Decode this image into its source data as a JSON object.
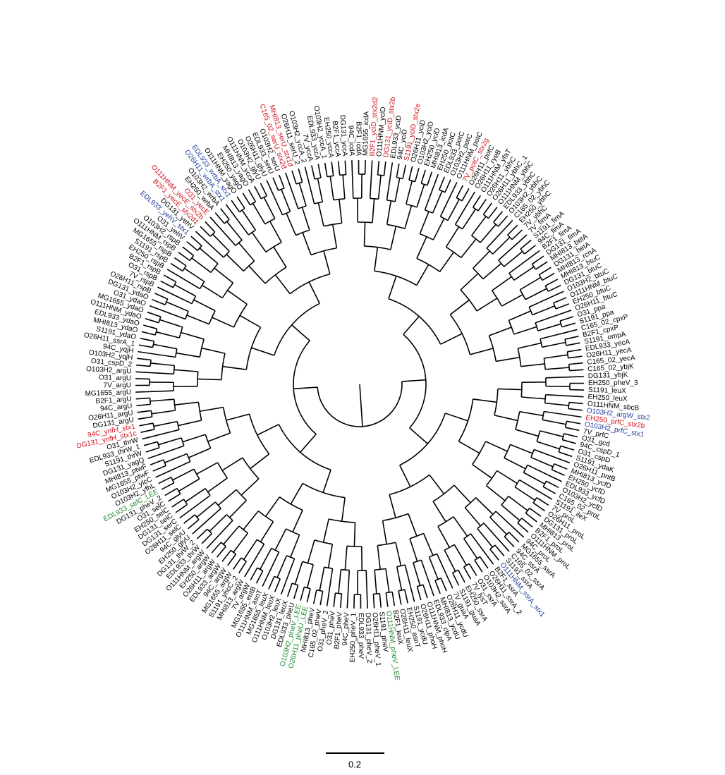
{
  "palette": {
    "k": "#000000",
    "r": "#d0111b",
    "b": "#1f3f9a",
    "g": "#1e8a2e"
  },
  "scale": "0.2",
  "leaves": [
    {
      "label": "94C_icdA",
      "c": "k"
    },
    {
      "label": "B2F1_icdA",
      "c": "k"
    },
    {
      "label": "MG1655_icdA",
      "c": "k"
    },
    {
      "label": "B2F1_yciD_stx2d2",
      "c": "r"
    },
    {
      "label": "O111HNM_yciD",
      "c": "k"
    },
    {
      "label": "DG131_yciD_stx2b",
      "c": "r"
    },
    {
      "label": "EDL933_yciD",
      "c": "k"
    },
    {
      "label": "94C_yciD",
      "c": "k"
    },
    {
      "label": "S1191_yciD_stx2e",
      "c": "r"
    },
    {
      "label": "O26H11_yciD",
      "c": "k"
    },
    {
      "label": "O103H2_yciD",
      "c": "k"
    },
    {
      "label": "EH250_yciD",
      "c": "k"
    },
    {
      "label": "MHI813_icdA",
      "c": "k"
    },
    {
      "label": "EH250_potC",
      "c": "k"
    },
    {
      "label": "EDL933_potC",
      "c": "k"
    },
    {
      "label": "O103H2_potC",
      "c": "k"
    },
    {
      "label": "O111HNM_potC",
      "c": "k"
    },
    {
      "label": "7V_potC_stx2g",
      "c": "r"
    },
    {
      "label": "O26H11_potC",
      "c": "k"
    },
    {
      "label": "O26H11_ryeB",
      "c": "k"
    },
    {
      "label": "O111HNM_yfaT",
      "c": "k"
    },
    {
      "label": "O26H11_ybhC",
      "c": "k"
    },
    {
      "label": "O26H11_ybhC_1",
      "c": "k"
    },
    {
      "label": "O111HNM_ybhC",
      "c": "k"
    },
    {
      "label": "EDL933_ybhC",
      "c": "k"
    },
    {
      "label": "O103H2_ybhC",
      "c": "k"
    },
    {
      "label": "C165_02_ybhC",
      "c": "k"
    },
    {
      "label": "EH250_ybhC",
      "c": "k"
    },
    {
      "label": "7V_ybhC",
      "c": "k"
    },
    {
      "label": "7V_fimA",
      "c": "k"
    },
    {
      "label": "S1191_fimA",
      "c": "k"
    },
    {
      "label": "94C_fimA",
      "c": "k"
    },
    {
      "label": "B2F1_fimA",
      "c": "k"
    },
    {
      "label": "DG131_fimA",
      "c": "k"
    },
    {
      "label": "MHI813_betA",
      "c": "k"
    },
    {
      "label": "DG131_betA",
      "c": "k"
    },
    {
      "label": "MHI813_rcnA",
      "c": "k"
    },
    {
      "label": "MHI813_btuC",
      "c": "k"
    },
    {
      "label": "DG131_btuC",
      "c": "k"
    },
    {
      "label": "O103H2_btuC",
      "c": "k"
    },
    {
      "label": "O111HNM_btuC",
      "c": "k"
    },
    {
      "label": "EH250_btuC",
      "c": "k"
    },
    {
      "label": "O26H11_btuC",
      "c": "k"
    },
    {
      "label": "O31_ppa",
      "c": "k"
    },
    {
      "label": "S1191_ppa",
      "c": "k"
    },
    {
      "label": "C165_02_cpxP",
      "c": "k"
    },
    {
      "label": "B2F1_cpxP",
      "c": "k"
    },
    {
      "label": "S1191_ompA",
      "c": "k"
    },
    {
      "label": "EDL933_yecA",
      "c": "k"
    },
    {
      "label": "O26H11_yecA",
      "c": "k"
    },
    {
      "label": "C165_02_yecA",
      "c": "k"
    },
    {
      "label": "C165_02_ybjK",
      "c": "k"
    },
    {
      "label": "DG131_ybjK",
      "c": "k"
    },
    {
      "label": "EH250_pheV_3",
      "c": "k"
    },
    {
      "label": "S1191_leuX",
      "c": "k"
    },
    {
      "label": "EH250_leuX",
      "c": "k"
    },
    {
      "label": "O111HNM_sbcB",
      "c": "k"
    },
    {
      "label": "O103H2_argW_stx2",
      "c": "b"
    },
    {
      "label": "EH250_prfC_stx2b",
      "c": "r"
    },
    {
      "label": "O103H2_prfC_stx1",
      "c": "b"
    },
    {
      "label": "7V_prfC",
      "c": "k"
    },
    {
      "label": "O31_gcd",
      "c": "k"
    },
    {
      "label": "94C_cspD_1",
      "c": "k"
    },
    {
      "label": "O31_cspD",
      "c": "k"
    },
    {
      "label": "S1191_ydaK",
      "c": "k"
    },
    {
      "label": "O26H11_pntB",
      "c": "k"
    },
    {
      "label": "MHI813_ycfD",
      "c": "k"
    },
    {
      "label": "EH250_ycfD",
      "c": "k"
    },
    {
      "label": "EDL933_ycfD",
      "c": "k"
    },
    {
      "label": "O103H2_ycfD",
      "c": "k"
    },
    {
      "label": "C165_02_proL",
      "c": "k"
    },
    {
      "label": "S1191_ileX",
      "c": "k"
    },
    {
      "label": "7V_proL",
      "c": "k"
    },
    {
      "label": "O26H11_proL",
      "c": "k"
    },
    {
      "label": "DG131_proL",
      "c": "k"
    },
    {
      "label": "MHI813_proL",
      "c": "k"
    },
    {
      "label": "B2F1_proL",
      "c": "k"
    },
    {
      "label": "O111HNM_proL",
      "c": "k"
    },
    {
      "label": "94C_proL",
      "c": "k"
    },
    {
      "label": "MG1655_ssrA",
      "c": "k"
    },
    {
      "label": "94C_ssrA",
      "c": "k"
    },
    {
      "label": "C165_02_ssrA",
      "c": "k"
    },
    {
      "label": "S1191_ssrA",
      "c": "k"
    },
    {
      "label": "O111HNM_ssrA_stx1",
      "c": "b"
    },
    {
      "label": "B2F1_ssrA",
      "c": "k"
    },
    {
      "label": "O26H11_ssrA_2",
      "c": "k"
    },
    {
      "label": "O103H2_ssrA",
      "c": "k"
    },
    {
      "label": "O31_ssrA",
      "c": "k"
    },
    {
      "label": "7V_lysT",
      "c": "k"
    },
    {
      "label": "EH250_ssrA",
      "c": "k"
    },
    {
      "label": "S1191_guaA",
      "c": "k"
    },
    {
      "label": "7V_guaA",
      "c": "k"
    },
    {
      "label": "O26H11_ycdU",
      "c": "k"
    },
    {
      "label": "MHI813_ycdU",
      "c": "k"
    },
    {
      "label": "EDL933_clpA",
      "c": "k"
    },
    {
      "label": "O111HNM_phoH",
      "c": "k"
    },
    {
      "label": "O26H11_phoH",
      "c": "k"
    },
    {
      "label": "S1191_ycdU",
      "c": "k"
    },
    {
      "label": "EH250_asnT",
      "c": "k"
    },
    {
      "label": "O26H11_leuX",
      "c": "k"
    },
    {
      "label": "B2F1_leuX",
      "c": "k"
    },
    {
      "label": "O111HNM_pheV_LEE",
      "c": "g"
    },
    {
      "label": "S1191_pheV",
      "c": "k"
    },
    {
      "label": "O26H11_pheV_1",
      "c": "k"
    },
    {
      "label": "DG131_pheV_2",
      "c": "k"
    },
    {
      "label": "EDL933_pheV",
      "c": "k"
    },
    {
      "label": "EH250_pheV_1",
      "c": "k"
    },
    {
      "label": "94C_pheV",
      "c": "k"
    },
    {
      "label": "B2F1_pheV",
      "c": "k"
    },
    {
      "label": "O31_pheV",
      "c": "k"
    },
    {
      "label": "O31_pheV_2",
      "c": "k"
    },
    {
      "label": "C165_02_pheV",
      "c": "k"
    },
    {
      "label": "MHI813_pheV",
      "c": "k"
    },
    {
      "label": "O26H11_pheU_LEE",
      "c": "g"
    },
    {
      "label": "O103H2_pheV_LEE",
      "c": "g"
    },
    {
      "label": "EDL933_pheU",
      "c": "k"
    },
    {
      "label": "DG131_leuX",
      "c": "k"
    },
    {
      "label": "O103H2_leuX",
      "c": "k"
    },
    {
      "label": "O111HNM_leuX",
      "c": "k"
    },
    {
      "label": "MG1655_leuX",
      "c": "k"
    },
    {
      "label": "O111HNM_asnT",
      "c": "k"
    },
    {
      "label": "MG1655_eutB",
      "c": "k"
    },
    {
      "label": "7V_argW",
      "c": "k"
    },
    {
      "label": "MHI813_argW",
      "c": "k"
    },
    {
      "label": "S1191_yhcC_2",
      "c": "k"
    },
    {
      "label": "MG1655_argW",
      "c": "k"
    },
    {
      "label": "94C_argW",
      "c": "k"
    },
    {
      "label": "EDL933_argW",
      "c": "k"
    },
    {
      "label": "O26H11_argW",
      "c": "k"
    },
    {
      "label": "EH250_argW",
      "c": "k"
    },
    {
      "label": "O111HNM_argW",
      "c": "k"
    },
    {
      "label": "EDL933_thrW",
      "c": "k"
    },
    {
      "label": "DG131_thrW_2",
      "c": "k"
    },
    {
      "label": "EH250_glyU",
      "c": "k"
    },
    {
      "label": "94C_glyU",
      "c": "k"
    },
    {
      "label": "O26H11_selC",
      "c": "k"
    },
    {
      "label": "DG131_serC",
      "c": "k"
    },
    {
      "label": "DG131_selC",
      "c": "k"
    },
    {
      "label": "EH250_selC",
      "c": "k"
    },
    {
      "label": "O31_selC",
      "c": "k"
    },
    {
      "label": "DG131_pheV_2",
      "c": "k"
    },
    {
      "label": "EDL933_selC_LEE",
      "c": "g"
    },
    {
      "label": "O103H2_yfhL",
      "c": "k"
    },
    {
      "label": "O103H2_ylcC",
      "c": "k"
    },
    {
      "label": "MG1655_ptwF",
      "c": "k"
    },
    {
      "label": "MHI813_ptwF",
      "c": "k"
    },
    {
      "label": "DG131_yagQ",
      "c": "k"
    },
    {
      "label": "S1191_thrW",
      "c": "k"
    },
    {
      "label": "EDL933_thrW_1",
      "c": "k"
    },
    {
      "label": "O31_thrW",
      "c": "k"
    },
    {
      "label": "DG131_ynfH_stx1c",
      "c": "r"
    },
    {
      "label": "94C_ynfH_stx1",
      "c": "r"
    },
    {
      "label": "DG131_argU",
      "c": "k"
    },
    {
      "label": "O26H11_argU",
      "c": "k"
    },
    {
      "label": "94C_argU",
      "c": "k"
    },
    {
      "label": "B2F1_argU",
      "c": "k"
    },
    {
      "label": "MG1655_argU",
      "c": "k"
    },
    {
      "label": "7V_argU",
      "c": "k"
    },
    {
      "label": "O31_argU",
      "c": "k"
    },
    {
      "label": "O103H2_argU",
      "c": "k"
    },
    {
      "label": "O31_cspD_2",
      "c": "k"
    },
    {
      "label": "O103H2_yqjH",
      "c": "k"
    },
    {
      "label": "94C_yqjH",
      "c": "k"
    },
    {
      "label": "O26H11_ssrA_1",
      "c": "k"
    },
    {
      "label": "S1191_ydaO",
      "c": "k"
    },
    {
      "label": "MHI813_ydaO",
      "c": "k"
    },
    {
      "label": "EDL933_ydaO",
      "c": "k"
    },
    {
      "label": "O111HNM_ydaO",
      "c": "k"
    },
    {
      "label": "MG1655_ydaO",
      "c": "k"
    },
    {
      "label": "O31_ydaO",
      "c": "k"
    },
    {
      "label": "DG131_ydaO",
      "c": "k"
    },
    {
      "label": "O26H11_rspB",
      "c": "k"
    },
    {
      "label": "7V_rspB",
      "c": "k"
    },
    {
      "label": "O31_rspB",
      "c": "k"
    },
    {
      "label": "B2F1_rspB",
      "c": "k"
    },
    {
      "label": "EH250_rspB",
      "c": "k"
    },
    {
      "label": "S1191_rspB",
      "c": "k"
    },
    {
      "label": "MG1655_rspB",
      "c": "k"
    },
    {
      "label": "O111HNM_rspB",
      "c": "k"
    },
    {
      "label": "O103H2_rspB",
      "c": "k"
    },
    {
      "label": "O31_yehV",
      "c": "k"
    },
    {
      "label": "EDL933_yehV_stx1",
      "c": "b"
    },
    {
      "label": "DG131_yehV",
      "c": "k"
    },
    {
      "label": "B2F1_yecE_stx2d1",
      "c": "r"
    },
    {
      "label": "O111HNM_yecE_stx2b",
      "c": "r"
    },
    {
      "label": "O31_yecE",
      "c": "r"
    },
    {
      "label": "EH250_wrbA",
      "c": "k"
    },
    {
      "label": "O103H2_wrbA",
      "c": "k"
    },
    {
      "label": "O26H11_wrbA_stx1",
      "c": "b"
    },
    {
      "label": "EDL933_wrbA_stx1",
      "c": "b"
    },
    {
      "label": "O111HNM_yagO",
      "c": "k"
    },
    {
      "label": "EH250_yagO",
      "c": "k"
    },
    {
      "label": "MHI813_yagO",
      "c": "k"
    },
    {
      "label": "O111HNM_yccA",
      "c": "k"
    },
    {
      "label": "O103H2_glyU",
      "c": "k"
    },
    {
      "label": "O26H11_glyU",
      "c": "k"
    },
    {
      "label": "EDL933_serU",
      "c": "k"
    },
    {
      "label": "O103H2_serU",
      "c": "k"
    },
    {
      "label": "C165_02_serU_stx2d",
      "c": "r"
    },
    {
      "label": "MHI813_serU_stx1d",
      "c": "r"
    },
    {
      "label": "O26H11_serU_2",
      "c": "k"
    },
    {
      "label": "O103H2_yccA_2",
      "c": "k"
    },
    {
      "label": "7V_yccA",
      "c": "k"
    },
    {
      "label": "EDL933_yccA",
      "c": "k"
    },
    {
      "label": "O103H2_yccA_1",
      "c": "k"
    },
    {
      "label": "EH250_yccA",
      "c": "k"
    },
    {
      "label": "B2F1_yccA",
      "c": "k"
    },
    {
      "label": "DG131_yccA",
      "c": "k"
    }
  ]
}
